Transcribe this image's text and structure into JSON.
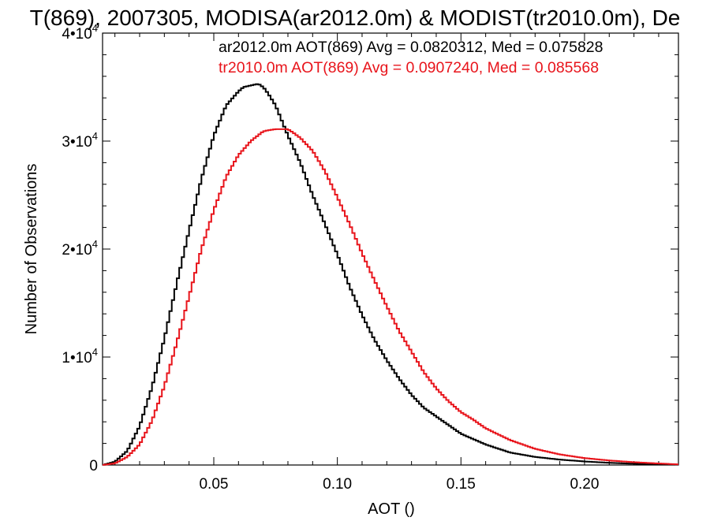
{
  "chart_data": {
    "type": "line",
    "title": "T(869), 2007305, MODISA(ar2012.0m) & MODIST(tr2010.0m), De",
    "xlabel": "AOT ()",
    "ylabel": "Number of Observations",
    "xlim": [
      0.005,
      0.238
    ],
    "ylim": [
      0,
      40000
    ],
    "grid": false,
    "xticks": [
      {
        "value": 0.05,
        "label": "0.05"
      },
      {
        "value": 0.1,
        "label": "0.10"
      },
      {
        "value": 0.15,
        "label": "0.15"
      },
      {
        "value": 0.2,
        "label": "0.20"
      }
    ],
    "yticks": [
      {
        "value": 0,
        "label": "0"
      },
      {
        "value": 10000,
        "mant": "1•10",
        "exp": "4"
      },
      {
        "value": 20000,
        "mant": "2•10",
        "exp": "4"
      },
      {
        "value": 30000,
        "mant": "3•10",
        "exp": "4"
      },
      {
        "value": 40000,
        "mant": "4•10",
        "exp": "4"
      }
    ],
    "series": [
      {
        "name": "ar2012.0m",
        "annotation": "ar2012.0m AOT(869) Avg = 0.0820312, Med = 0.075828",
        "color": "#000000",
        "x": [
          0.005,
          0.01,
          0.015,
          0.02,
          0.025,
          0.03,
          0.035,
          0.04,
          0.045,
          0.05,
          0.055,
          0.06,
          0.062,
          0.064,
          0.066,
          0.068,
          0.07,
          0.072,
          0.075,
          0.08,
          0.085,
          0.09,
          0.095,
          0.1,
          0.105,
          0.11,
          0.115,
          0.12,
          0.125,
          0.13,
          0.135,
          0.14,
          0.145,
          0.15,
          0.16,
          0.17,
          0.18,
          0.19,
          0.2,
          0.21,
          0.22,
          0.23,
          0.238
        ],
        "y": [
          0,
          300,
          1300,
          3600,
          7200,
          11700,
          16800,
          21700,
          26500,
          30500,
          33300,
          34600,
          35000,
          35100,
          35200,
          35300,
          35000,
          34400,
          33300,
          30500,
          28000,
          25000,
          22300,
          19500,
          16500,
          13900,
          11600,
          9700,
          8000,
          6500,
          5300,
          4500,
          3700,
          2900,
          1900,
          1150,
          750,
          500,
          330,
          200,
          120,
          60,
          30
        ]
      },
      {
        "name": "tr2010.0m",
        "annotation": "tr2010.0m AOT(869) Avg = 0.0907240, Med = 0.085568",
        "color": "#e8141b",
        "x": [
          0.005,
          0.01,
          0.015,
          0.02,
          0.025,
          0.03,
          0.035,
          0.04,
          0.045,
          0.05,
          0.055,
          0.06,
          0.065,
          0.07,
          0.072,
          0.075,
          0.08,
          0.082,
          0.085,
          0.09,
          0.095,
          0.1,
          0.105,
          0.11,
          0.115,
          0.12,
          0.125,
          0.13,
          0.135,
          0.14,
          0.145,
          0.15,
          0.155,
          0.16,
          0.17,
          0.18,
          0.19,
          0.2,
          0.21,
          0.22,
          0.23,
          0.238
        ],
        "y": [
          0,
          150,
          750,
          1900,
          4100,
          7300,
          11300,
          15600,
          20000,
          23600,
          26700,
          28700,
          30000,
          30900,
          31000,
          31100,
          31100,
          30800,
          30300,
          29100,
          27200,
          24800,
          22300,
          19600,
          17100,
          14700,
          12400,
          10500,
          8600,
          7100,
          5900,
          4900,
          4200,
          3400,
          2300,
          1500,
          980,
          640,
          420,
          260,
          140,
          60
        ]
      }
    ]
  }
}
